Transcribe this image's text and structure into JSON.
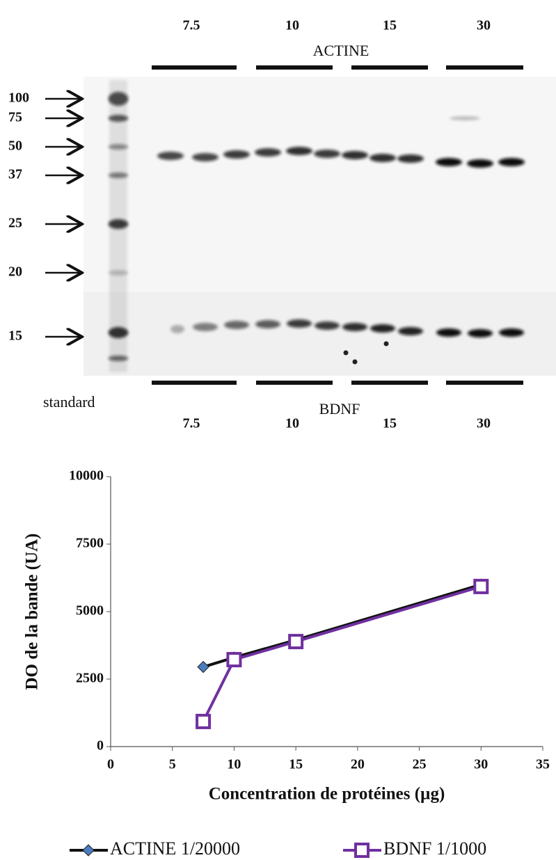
{
  "blot": {
    "top_lanes": [
      "7.5",
      "10",
      "15",
      "30"
    ],
    "top_label": "ACTINE",
    "markers": [
      "100",
      "75",
      "50",
      "37",
      "25",
      "20",
      "15"
    ],
    "standard_label": "standard",
    "bottom_label": "BDNF",
    "bottom_lanes": [
      "7.5",
      "10",
      "15",
      "30"
    ]
  },
  "chart_data": {
    "type": "line",
    "xlabel": "Concentration de protéines (µg)",
    "ylabel": "DO de la bande (UA)",
    "x": [
      7.5,
      10,
      15,
      30
    ],
    "xlim": [
      0,
      35
    ],
    "xticks": [
      0,
      5,
      10,
      15,
      20,
      25,
      30,
      35
    ],
    "ylim": [
      0,
      10000
    ],
    "yticks": [
      0,
      2500,
      5000,
      7500,
      10000
    ],
    "series": [
      {
        "name": "ACTINE 1/20000",
        "color": "#111111",
        "marker": "diamond",
        "marker_color": "#4a7cc0",
        "values": [
          2950,
          3300,
          3950,
          6000
        ]
      },
      {
        "name": "BDNF 1/1000",
        "color": "#7030a0",
        "marker": "square",
        "marker_color": "#ffffff",
        "values": [
          930,
          3220,
          3890,
          5930
        ]
      }
    ]
  }
}
